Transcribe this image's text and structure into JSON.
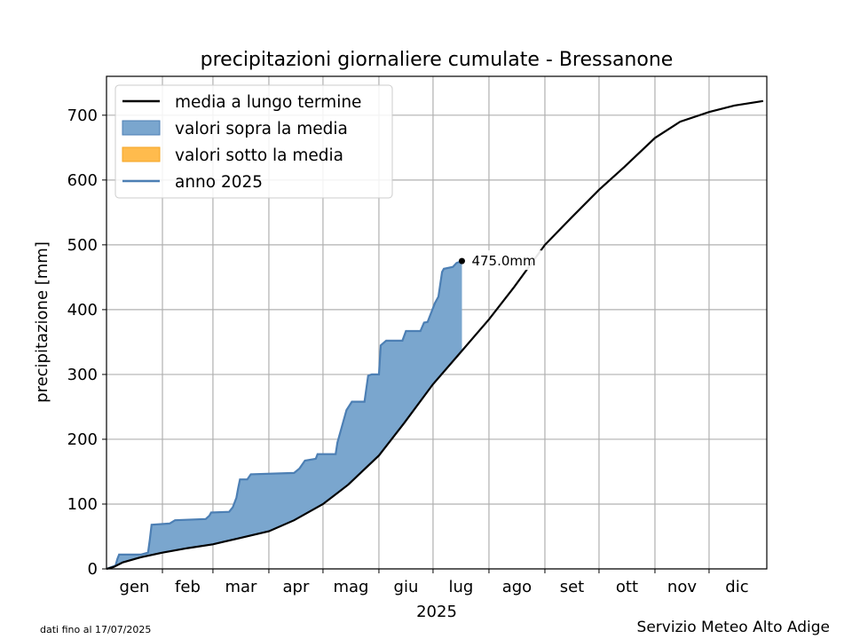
{
  "chart_data": {
    "type": "area",
    "title": "precipitazioni giornaliere cumulate - Bressanone",
    "xlabel": "2025",
    "ylabel": "precipitazione [mm]",
    "ylim": [
      0,
      760
    ],
    "yticks": [
      0,
      100,
      200,
      300,
      400,
      500,
      600,
      700
    ],
    "xlim_days": [
      0,
      366
    ],
    "months": [
      "gen",
      "feb",
      "mar",
      "apr",
      "mag",
      "giu",
      "lug",
      "ago",
      "set",
      "ott",
      "nov",
      "dic"
    ],
    "grid": true,
    "legend_position": "upper-left",
    "legend": [
      {
        "label": "media a lungo termine",
        "kind": "line",
        "color": "#000000"
      },
      {
        "label": "valori sopra la media",
        "kind": "fill",
        "color": "#7aa6ce"
      },
      {
        "label": "valori sotto la media",
        "kind": "fill",
        "color": "#ffbb4d"
      },
      {
        "label": "anno 2025",
        "kind": "line",
        "color": "#4c7fb4"
      }
    ],
    "series": [
      {
        "name": "media a lungo termine",
        "color": "#000000",
        "points": [
          [
            "2025-01-01",
            0
          ],
          [
            "2025-01-05",
            3
          ],
          [
            "2025-01-10",
            10
          ],
          [
            "2025-01-20",
            18
          ],
          [
            "2025-02-01",
            25
          ],
          [
            "2025-02-15",
            32
          ],
          [
            "2025-03-01",
            38
          ],
          [
            "2025-03-15",
            47
          ],
          [
            "2025-04-01",
            58
          ],
          [
            "2025-04-15",
            75
          ],
          [
            "2025-05-01",
            100
          ],
          [
            "2025-05-15",
            130
          ],
          [
            "2025-06-01",
            175
          ],
          [
            "2025-06-15",
            225
          ],
          [
            "2025-07-01",
            285
          ],
          [
            "2025-07-15",
            330
          ],
          [
            "2025-08-01",
            385
          ],
          [
            "2025-08-15",
            435
          ],
          [
            "2025-09-01",
            500
          ],
          [
            "2025-09-15",
            540
          ],
          [
            "2025-10-01",
            585
          ],
          [
            "2025-10-15",
            620
          ],
          [
            "2025-11-01",
            665
          ],
          [
            "2025-11-15",
            690
          ],
          [
            "2025-12-01",
            705
          ],
          [
            "2025-12-15",
            715
          ],
          [
            "2025-12-31",
            722
          ]
        ]
      },
      {
        "name": "anno 2025",
        "color": "#4c7fb4",
        "points": [
          [
            "2025-01-01",
            0
          ],
          [
            "2025-01-06",
            5
          ],
          [
            "2025-01-07",
            15
          ],
          [
            "2025-01-08",
            22
          ],
          [
            "2025-01-20",
            22
          ],
          [
            "2025-01-24",
            25
          ],
          [
            "2025-01-25",
            45
          ],
          [
            "2025-01-26",
            68
          ],
          [
            "2025-02-05",
            70
          ],
          [
            "2025-02-08",
            75
          ],
          [
            "2025-02-25",
            77
          ],
          [
            "2025-02-27",
            82
          ],
          [
            "2025-02-28",
            87
          ],
          [
            "2025-03-10",
            88
          ],
          [
            "2025-03-12",
            95
          ],
          [
            "2025-03-14",
            110
          ],
          [
            "2025-03-15",
            125
          ],
          [
            "2025-03-16",
            138
          ],
          [
            "2025-03-20",
            138
          ],
          [
            "2025-03-22",
            146
          ],
          [
            "2025-04-15",
            148
          ],
          [
            "2025-04-18",
            155
          ],
          [
            "2025-04-21",
            167
          ],
          [
            "2025-04-27",
            170
          ],
          [
            "2025-04-28",
            177
          ],
          [
            "2025-05-08",
            177
          ],
          [
            "2025-05-09",
            195
          ],
          [
            "2025-05-11",
            215
          ],
          [
            "2025-05-14",
            245
          ],
          [
            "2025-05-17",
            258
          ],
          [
            "2025-05-24",
            258
          ],
          [
            "2025-05-26",
            298
          ],
          [
            "2025-05-28",
            300
          ],
          [
            "2025-06-01",
            300
          ],
          [
            "2025-06-02",
            345
          ],
          [
            "2025-06-05",
            352
          ],
          [
            "2025-06-14",
            352
          ],
          [
            "2025-06-16",
            367
          ],
          [
            "2025-06-24",
            367
          ],
          [
            "2025-06-26",
            380
          ],
          [
            "2025-06-28",
            381
          ],
          [
            "2025-07-02",
            410
          ],
          [
            "2025-07-04",
            420
          ],
          [
            "2025-07-06",
            458
          ],
          [
            "2025-07-07",
            463
          ],
          [
            "2025-07-12",
            466
          ],
          [
            "2025-07-14",
            472
          ],
          [
            "2025-07-17",
            475
          ]
        ]
      }
    ],
    "annotation": "475.0mm",
    "date_note": "dati fino al 17/07/2025",
    "credit": "Servizio Meteo Alto Adige"
  }
}
